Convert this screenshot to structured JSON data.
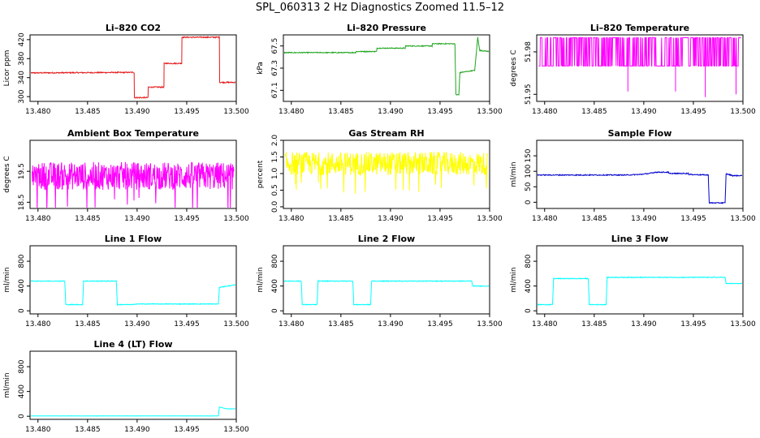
{
  "page": {
    "title": "SPL_060313  2 Hz Diagnostics Zoomed 11.5–12"
  },
  "chart_data": [
    {
      "type": "line",
      "title": "Li–820 CO2",
      "xlabel": "",
      "ylabel": "Licor ppm",
      "xlim": [
        13.4792,
        13.5
      ],
      "ylim": [
        290,
        430
      ],
      "x_ticks": [
        "13.480",
        "13.485",
        "13.490",
        "13.495",
        "13.500"
      ],
      "y_ticks": [
        "300",
        "340",
        "380",
        "420"
      ],
      "y_tick_values": [
        300,
        340,
        380,
        420
      ],
      "color": "#e41a1c",
      "noise": 1.2,
      "series": [
        {
          "x": [
            13.4792,
            13.4897,
            13.4897,
            13.4911,
            13.4911,
            13.4927,
            13.4927,
            13.4945,
            13.4945,
            13.4983,
            13.4983,
            13.5
          ],
          "values": [
            350,
            351,
            298,
            298,
            320,
            320,
            370,
            370,
            425,
            425,
            330,
            330
          ]
        }
      ]
    },
    {
      "type": "line",
      "title": "Li–820 Pressure",
      "xlabel": "",
      "ylabel": "kPa",
      "xlim": [
        13.4792,
        13.5
      ],
      "ylim": [
        67.0,
        67.6
      ],
      "x_ticks": [
        "13.480",
        "13.485",
        "13.490",
        "13.495",
        "13.500"
      ],
      "y_ticks": [
        "67.1",
        "67.3",
        "67.5"
      ],
      "y_tick_values": [
        67.1,
        67.3,
        67.5
      ],
      "color": "#1ea51e",
      "noise": 0.004,
      "series": [
        {
          "x": [
            13.4792,
            13.4865,
            13.4865,
            13.4886,
            13.4886,
            13.4915,
            13.4915,
            13.4942,
            13.4942,
            13.4965,
            13.4966,
            13.4969,
            13.497,
            13.4985,
            13.4988,
            13.499,
            13.5
          ],
          "values": [
            67.44,
            67.44,
            67.45,
            67.45,
            67.48,
            67.48,
            67.5,
            67.5,
            67.52,
            67.52,
            67.06,
            67.06,
            67.26,
            67.28,
            67.58,
            67.46,
            67.45
          ]
        }
      ]
    },
    {
      "type": "line",
      "title": "Li–820 Temperature",
      "xlabel": "",
      "ylabel": "degrees C",
      "xlim": [
        13.4792,
        13.5
      ],
      "ylim": [
        51.945,
        51.992
      ],
      "x_ticks": [
        "13.480",
        "13.485",
        "13.490",
        "13.495",
        "13.500"
      ],
      "y_ticks": [
        "51.95",
        "51.98"
      ],
      "y_tick_values": [
        51.95,
        51.98
      ],
      "color": "#ff00ff",
      "style": "bistable",
      "high": 51.99,
      "low": 51.97,
      "spikes": [
        [
          13.4884,
          51.952
        ],
        [
          13.4932,
          51.952
        ],
        [
          13.4962,
          51.948
        ],
        [
          13.4993,
          51.95
        ]
      ],
      "series": [
        {
          "x": [
            13.4792,
            13.5
          ],
          "values": [
            51.98,
            51.98
          ]
        }
      ]
    },
    {
      "type": "line",
      "title": "Ambient Box Temperature",
      "xlabel": "",
      "ylabel": "degrees C",
      "xlim": [
        13.4792,
        13.5
      ],
      "ylim": [
        18.3,
        20.5
      ],
      "x_ticks": [
        "13.480",
        "13.485",
        "13.490",
        "13.495",
        "13.500"
      ],
      "y_ticks": [
        "18.5",
        "19.5"
      ],
      "y_tick_values": [
        18.5,
        19.5
      ],
      "color": "#ff00ff",
      "style": "noise",
      "mean": 19.35,
      "amp": 0.45,
      "series": [
        {
          "x": [
            13.4792,
            13.5
          ],
          "values": [
            19.35,
            19.35
          ]
        }
      ]
    },
    {
      "type": "line",
      "title": "Gas Stream RH",
      "xlabel": "",
      "ylabel": "percent",
      "xlim": [
        13.4792,
        13.5
      ],
      "ylim": [
        -0.05,
        2.0
      ],
      "x_ticks": [
        "13.480",
        "13.485",
        "13.490",
        "13.495",
        "13.500"
      ],
      "y_ticks": [
        "0.0",
        "0.5",
        "1.0",
        "1.5",
        "2.0"
      ],
      "y_tick_values": [
        0.0,
        0.5,
        1.0,
        1.5,
        2.0
      ],
      "color": "#ffff00",
      "style": "noise",
      "mean": 1.3,
      "amp": 0.35,
      "series": [
        {
          "x": [
            13.4792,
            13.5
          ],
          "values": [
            1.3,
            1.3
          ]
        }
      ]
    },
    {
      "type": "line",
      "title": "Sample Flow",
      "xlabel": "",
      "ylabel": "ml/min",
      "xlim": [
        13.4792,
        13.5
      ],
      "ylim": [
        -20,
        200
      ],
      "x_ticks": [
        "13.480",
        "13.485",
        "13.490",
        "13.495",
        "13.500"
      ],
      "y_ticks": [
        "0",
        "50",
        "100",
        "150"
      ],
      "y_tick_values": [
        0,
        50,
        100,
        150
      ],
      "color": "#0000cd",
      "noise": 1.5,
      "series": [
        {
          "x": [
            13.4792,
            13.4883,
            13.4897,
            13.491,
            13.491,
            13.4925,
            13.4925,
            13.4945,
            13.4945,
            13.4965,
            13.4966,
            13.4982,
            13.4983,
            13.499,
            13.5
          ],
          "values": [
            88,
            88,
            90,
            95,
            97,
            97,
            93,
            93,
            90,
            88,
            -2,
            -2,
            92,
            86,
            86
          ]
        }
      ]
    },
    {
      "type": "line",
      "title": "Line 1 Flow",
      "xlabel": "",
      "ylabel": "ml/min",
      "xlim": [
        13.4792,
        13.5
      ],
      "ylim": [
        -50,
        1050
      ],
      "x_ticks": [
        "13.480",
        "13.485",
        "13.490",
        "13.495",
        "13.500"
      ],
      "y_ticks": [
        "0",
        "400",
        "800"
      ],
      "y_tick_values": [
        0,
        400,
        800
      ],
      "color": "#00ffff",
      "noise": 6,
      "series": [
        {
          "x": [
            13.4792,
            13.4827,
            13.4828,
            13.4845,
            13.4846,
            13.4879,
            13.488,
            13.4897,
            13.4898,
            13.4982,
            13.4983,
            13.5
          ],
          "values": [
            480,
            480,
            100,
            100,
            480,
            480,
            100,
            100,
            110,
            110,
            380,
            420
          ]
        }
      ]
    },
    {
      "type": "line",
      "title": "Line 2 Flow",
      "xlabel": "",
      "ylabel": "ml/min",
      "xlim": [
        13.4792,
        13.5
      ],
      "ylim": [
        -50,
        1050
      ],
      "x_ticks": [
        "13.480",
        "13.485",
        "13.490",
        "13.495",
        "13.500"
      ],
      "y_ticks": [
        "0",
        "400",
        "800"
      ],
      "y_tick_values": [
        0,
        400,
        800
      ],
      "color": "#00ffff",
      "noise": 6,
      "series": [
        {
          "x": [
            13.4792,
            13.481,
            13.4811,
            13.4826,
            13.4827,
            13.4862,
            13.4863,
            13.488,
            13.4881,
            13.4982,
            13.4983,
            13.5
          ],
          "values": [
            480,
            480,
            100,
            100,
            480,
            480,
            100,
            100,
            480,
            480,
            400,
            400
          ]
        }
      ]
    },
    {
      "type": "line",
      "title": "Line 3 Flow",
      "xlabel": "",
      "ylabel": "ml/min",
      "xlim": [
        13.4792,
        13.5
      ],
      "ylim": [
        -50,
        1050
      ],
      "x_ticks": [
        "13.480",
        "13.485",
        "13.490",
        "13.495",
        "13.500"
      ],
      "y_ticks": [
        "0",
        "400",
        "800"
      ],
      "y_tick_values": [
        0,
        400,
        800
      ],
      "color": "#00ffff",
      "noise": 6,
      "series": [
        {
          "x": [
            13.4792,
            13.4808,
            13.4809,
            13.4844,
            13.4845,
            13.4862,
            13.4863,
            13.4982,
            13.4983,
            13.5
          ],
          "values": [
            100,
            100,
            520,
            520,
            100,
            100,
            540,
            540,
            440,
            440
          ]
        }
      ]
    },
    {
      "type": "line",
      "title": "Line 4 (LT) Flow",
      "xlabel": "",
      "ylabel": "ml/min",
      "xlim": [
        13.4792,
        13.5
      ],
      "ylim": [
        -50,
        1050
      ],
      "x_ticks": [
        "13.480",
        "13.485",
        "13.490",
        "13.495",
        "13.500"
      ],
      "y_ticks": [
        "0",
        "400",
        "800"
      ],
      "y_tick_values": [
        0,
        400,
        800
      ],
      "color": "#00ffff",
      "noise": 2,
      "series": [
        {
          "x": [
            13.4792,
            13.4982,
            13.4983,
            13.499,
            13.5
          ],
          "values": [
            5,
            5,
            150,
            120,
            120
          ]
        }
      ]
    }
  ]
}
